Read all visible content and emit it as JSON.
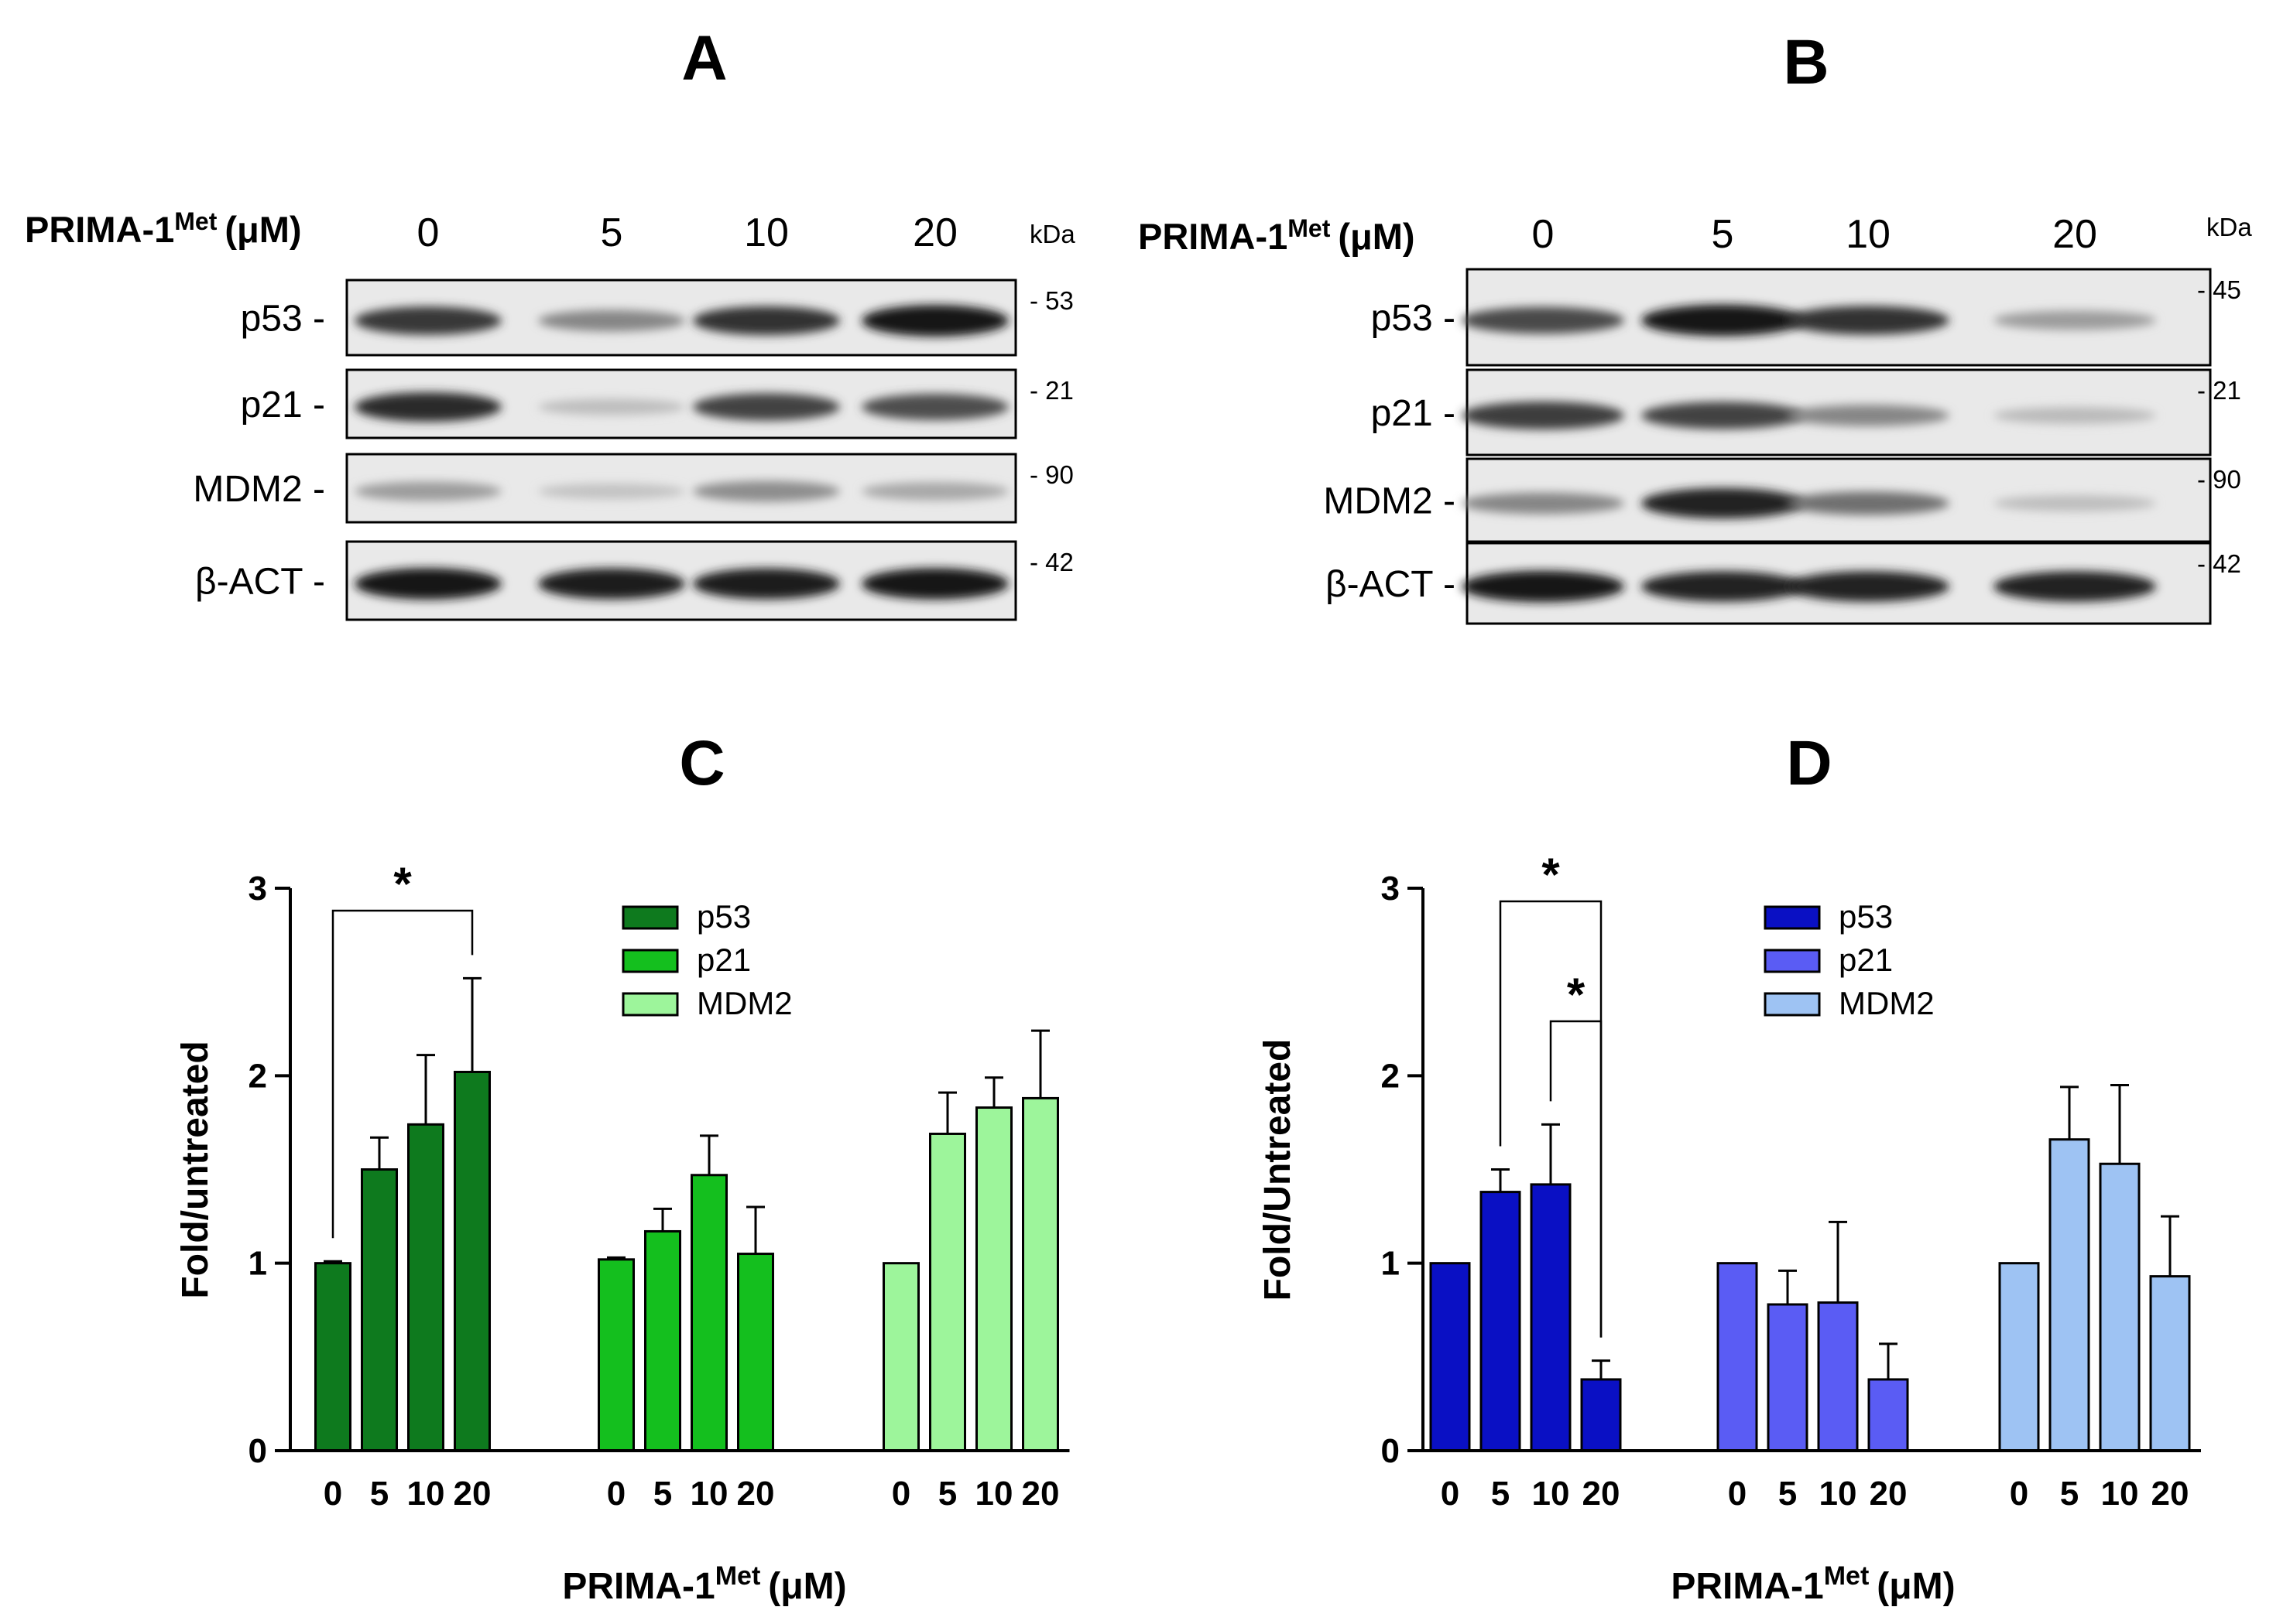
{
  "figure": {
    "panels": [
      "A",
      "B",
      "C",
      "D"
    ]
  },
  "blots": [
    {
      "panel": "A",
      "treatment_label": {
        "main": "PRIMA-1",
        "sup": "Met",
        "unit": "(μM)"
      },
      "lanes": [
        "0",
        "5",
        "10",
        "20"
      ],
      "kda_label": "kDa",
      "rows": [
        {
          "label": "p53 -",
          "kda": "- 53",
          "intensity": [
            0.8,
            0.45,
            0.82,
            0.95
          ]
        },
        {
          "label": "p21 -",
          "kda": "- 21",
          "intensity": [
            0.85,
            0.2,
            0.75,
            0.7
          ]
        },
        {
          "label": "MDM2 -",
          "kda": "- 90",
          "intensity": [
            0.35,
            0.18,
            0.42,
            0.3
          ]
        },
        {
          "label": "β-ACT -",
          "kda": "- 42",
          "intensity": [
            0.95,
            0.92,
            0.92,
            0.94
          ]
        }
      ]
    },
    {
      "panel": "B",
      "treatment_label": {
        "main": "PRIMA-1",
        "sup": "Met",
        "unit": "(μM)"
      },
      "lanes": [
        "0",
        "5",
        "10",
        "20"
      ],
      "kda_label": "kDa",
      "rows": [
        {
          "label": "p53 -",
          "kda": "- 45",
          "intensity": [
            0.72,
            0.95,
            0.82,
            0.35
          ]
        },
        {
          "label": "p21 -",
          "kda": "- 21",
          "intensity": [
            0.78,
            0.75,
            0.45,
            0.22
          ]
        },
        {
          "label": "MDM2 -",
          "kda": "- 90",
          "intensity": [
            0.45,
            0.9,
            0.55,
            0.2
          ]
        },
        {
          "label": "β-ACT -",
          "kda": "- 42",
          "intensity": [
            0.95,
            0.9,
            0.9,
            0.9
          ]
        }
      ]
    }
  ],
  "chart_data": [
    {
      "panel": "C",
      "type": "bar",
      "ylabel": "Fold/untreated",
      "xlabel": {
        "main": "PRIMA-1",
        "sup": "Met",
        "unit": "(μM)"
      },
      "ylim": [
        0,
        3
      ],
      "yticks": [
        "0",
        "1",
        "2",
        "3"
      ],
      "categories": [
        "0",
        "5",
        "10",
        "20"
      ],
      "series": [
        {
          "name": "p53",
          "color": "#0e7a1e",
          "values": [
            1.0,
            1.5,
            1.74,
            2.02
          ],
          "errors": [
            0.01,
            0.17,
            0.37,
            0.5
          ]
        },
        {
          "name": "p21",
          "color": "#14bf1e",
          "values": [
            1.02,
            1.17,
            1.47,
            1.05
          ],
          "errors": [
            0.01,
            0.12,
            0.21,
            0.25
          ]
        },
        {
          "name": "MDM2",
          "color": "#9df59b",
          "values": [
            1.0,
            1.69,
            1.83,
            1.88
          ],
          "errors": [
            0.0,
            0.22,
            0.16,
            0.36
          ]
        }
      ],
      "significance": [
        {
          "series": 0,
          "from": 0,
          "to": 3,
          "label": "*"
        }
      ]
    },
    {
      "panel": "D",
      "type": "bar",
      "ylabel": "Fold/Untreated",
      "xlabel": {
        "main": "PRIMA-1",
        "sup": "Met",
        "unit": "(μM)"
      },
      "ylim": [
        0,
        3
      ],
      "yticks": [
        "0",
        "1",
        "2",
        "3"
      ],
      "categories": [
        "0",
        "5",
        "10",
        "20"
      ],
      "series": [
        {
          "name": "p53",
          "color": "#0a10c4",
          "values": [
            1.0,
            1.38,
            1.42,
            0.38
          ],
          "errors": [
            0.0,
            0.12,
            0.32,
            0.1
          ]
        },
        {
          "name": "p21",
          "color": "#5a5cf4",
          "values": [
            1.0,
            0.78,
            0.79,
            0.38
          ],
          "errors": [
            0.0,
            0.18,
            0.43,
            0.19
          ]
        },
        {
          "name": "MDM2",
          "color": "#9ec3f3",
          "values": [
            1.0,
            1.66,
            1.53,
            0.93
          ],
          "errors": [
            0.0,
            0.28,
            0.42,
            0.32
          ]
        }
      ],
      "significance": [
        {
          "series": 0,
          "from": 1,
          "to": 3,
          "label": "*"
        },
        {
          "series": 0,
          "from": 2,
          "to": 3,
          "label": "*"
        }
      ]
    }
  ]
}
